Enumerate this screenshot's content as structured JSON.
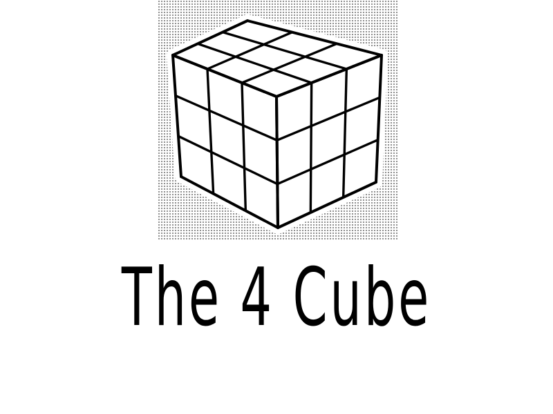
{
  "logo": {
    "icon": "rubiks-cube-icon",
    "title": "The 4 Cube"
  },
  "colors": {
    "background": "#ffffff",
    "ink": "#000000",
    "halftone": "#8a8a8a"
  }
}
